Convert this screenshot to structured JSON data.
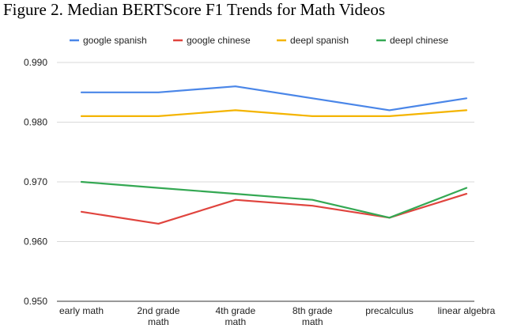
{
  "title": "Figure 2. Median BERTScore F1 Trends for Math Videos",
  "chart_data": {
    "type": "line",
    "title": "Figure 2. Median BERTScore F1 Trends for Math Videos",
    "categories": [
      [
        "early math"
      ],
      [
        "2nd grade",
        "math"
      ],
      [
        "4th grade",
        "math"
      ],
      [
        "8th grade",
        "math"
      ],
      [
        "precalculus"
      ],
      [
        "linear algebra"
      ]
    ],
    "ylim": [
      0.95,
      0.99
    ],
    "yticks": [
      "0.950",
      "0.960",
      "0.970",
      "0.980",
      "0.990"
    ],
    "ytick_values": [
      0.95,
      0.96,
      0.97,
      0.98,
      0.99
    ],
    "legend_position": "top",
    "grid": "horizontal",
    "series": [
      {
        "name": "google spanish",
        "color": "#4a86e8",
        "values": [
          0.985,
          0.985,
          0.986,
          0.984,
          0.982,
          0.984
        ]
      },
      {
        "name": "google chinese",
        "color": "#e0443e",
        "values": [
          0.965,
          0.963,
          0.967,
          0.966,
          0.964,
          0.968
        ]
      },
      {
        "name": "deepl spanish",
        "color": "#f4b400",
        "values": [
          0.981,
          0.981,
          0.982,
          0.981,
          0.981,
          0.982
        ]
      },
      {
        "name": "deepl chinese",
        "color": "#34a853",
        "values": [
          0.97,
          0.969,
          0.968,
          0.967,
          0.964,
          0.969
        ]
      }
    ]
  }
}
